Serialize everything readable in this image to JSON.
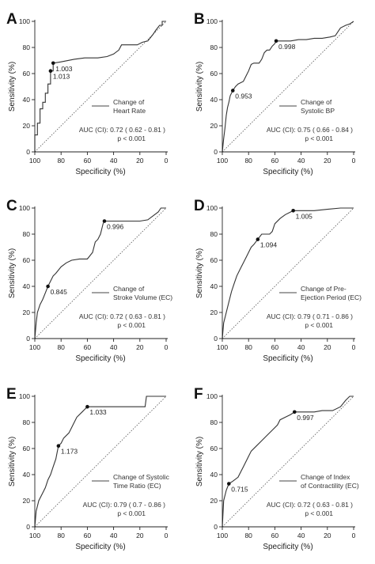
{
  "chart_data": [
    {
      "panel": "A",
      "type": "line",
      "xlabel": "Specificity (%)",
      "ylabel": "Sensitivity (%)",
      "xlim": [
        100,
        0
      ],
      "ylim": [
        0,
        100
      ],
      "xticks": [
        "100",
        "80",
        "60",
        "40",
        "20",
        "0"
      ],
      "yticks": [
        "0",
        "20",
        "40",
        "60",
        "80",
        "100"
      ],
      "legend": [
        "Change of",
        "Heart Rate"
      ],
      "auc": "AUC (CI): 0.72 ( 0.62 - 0.81 )",
      "p": "p < 0.001",
      "points": [
        {
          "x": 86,
          "y": 68,
          "label": "1.003"
        },
        {
          "x": 88,
          "y": 62,
          "label": "1.013"
        }
      ],
      "roc": [
        [
          100,
          0
        ],
        [
          100,
          13
        ],
        [
          98,
          13
        ],
        [
          98,
          22
        ],
        [
          96,
          22
        ],
        [
          96,
          33
        ],
        [
          94,
          33
        ],
        [
          94,
          38
        ],
        [
          92,
          38
        ],
        [
          92,
          45
        ],
        [
          90,
          45
        ],
        [
          90,
          52
        ],
        [
          88,
          52
        ],
        [
          88,
          62
        ],
        [
          86,
          62
        ],
        [
          86,
          68
        ],
        [
          80,
          69
        ],
        [
          70,
          71
        ],
        [
          62,
          72
        ],
        [
          52,
          72
        ],
        [
          45,
          73
        ],
        [
          40,
          75
        ],
        [
          36,
          78
        ],
        [
          34,
          82
        ],
        [
          28,
          82
        ],
        [
          22,
          82
        ],
        [
          18,
          84
        ],
        [
          14,
          85
        ],
        [
          10,
          90
        ],
        [
          8,
          93
        ],
        [
          5,
          97
        ],
        [
          3,
          97
        ],
        [
          3,
          100
        ],
        [
          0,
          100
        ]
      ]
    },
    {
      "panel": "B",
      "type": "line",
      "xlabel": "Specificity (%)",
      "ylabel": "Sensitivity (%)",
      "xlim": [
        100,
        0
      ],
      "ylim": [
        0,
        100
      ],
      "xticks": [
        "100",
        "80",
        "60",
        "40",
        "20",
        "0"
      ],
      "yticks": [
        "0",
        "20",
        "40",
        "60",
        "80",
        "100"
      ],
      "legend": [
        "Change of",
        "Systolic BP"
      ],
      "auc": "AUC (CI): 0.75 ( 0.66 - 0.84 )",
      "p": "p < 0.001",
      "points": [
        {
          "x": 59,
          "y": 85,
          "label": "0.998"
        },
        {
          "x": 92,
          "y": 47,
          "label": "0.953"
        }
      ],
      "roc": [
        [
          100,
          0
        ],
        [
          99,
          10
        ],
        [
          98,
          18
        ],
        [
          97,
          28
        ],
        [
          96,
          34
        ],
        [
          95,
          38
        ],
        [
          94,
          43
        ],
        [
          93,
          45
        ],
        [
          92,
          47
        ],
        [
          90,
          50
        ],
        [
          88,
          52
        ],
        [
          84,
          54
        ],
        [
          82,
          58
        ],
        [
          80,
          62
        ],
        [
          78,
          67
        ],
        [
          76,
          68
        ],
        [
          72,
          68
        ],
        [
          70,
          71
        ],
        [
          68,
          76
        ],
        [
          66,
          78
        ],
        [
          64,
          78
        ],
        [
          62,
          81
        ],
        [
          60,
          83
        ],
        [
          59,
          85
        ],
        [
          54,
          85
        ],
        [
          48,
          85
        ],
        [
          42,
          86
        ],
        [
          36,
          86
        ],
        [
          30,
          87
        ],
        [
          24,
          87
        ],
        [
          18,
          88
        ],
        [
          14,
          89
        ],
        [
          12,
          92
        ],
        [
          10,
          95
        ],
        [
          6,
          97
        ],
        [
          3,
          98
        ],
        [
          0,
          100
        ]
      ]
    },
    {
      "panel": "C",
      "type": "line",
      "xlabel": "Specificity (%)",
      "ylabel": "Sensitivity (%)",
      "xlim": [
        100,
        0
      ],
      "ylim": [
        0,
        100
      ],
      "xticks": [
        "100",
        "80",
        "60",
        "40",
        "20",
        "0"
      ],
      "yticks": [
        "0",
        "20",
        "40",
        "60",
        "80",
        "100"
      ],
      "legend": [
        "Change of",
        "Stroke Volume (EC)"
      ],
      "auc": "AUC (CI): 0.72 ( 0.63 - 0.81 )",
      "p": "p < 0.001",
      "points": [
        {
          "x": 47,
          "y": 90,
          "label": "0.996"
        },
        {
          "x": 90,
          "y": 40,
          "label": "0.845"
        }
      ],
      "roc": [
        [
          100,
          0
        ],
        [
          99,
          12
        ],
        [
          98,
          20
        ],
        [
          96,
          26
        ],
        [
          94,
          30
        ],
        [
          92,
          35
        ],
        [
          90,
          40
        ],
        [
          88,
          44
        ],
        [
          86,
          48
        ],
        [
          84,
          50
        ],
        [
          80,
          55
        ],
        [
          76,
          58
        ],
        [
          72,
          60
        ],
        [
          66,
          61
        ],
        [
          60,
          61
        ],
        [
          56,
          66
        ],
        [
          54,
          74
        ],
        [
          52,
          76
        ],
        [
          50,
          80
        ],
        [
          48,
          88
        ],
        [
          47,
          90
        ],
        [
          40,
          90
        ],
        [
          30,
          90
        ],
        [
          20,
          90
        ],
        [
          14,
          91
        ],
        [
          10,
          94
        ],
        [
          6,
          97
        ],
        [
          4,
          100
        ],
        [
          0,
          100
        ]
      ]
    },
    {
      "panel": "D",
      "type": "line",
      "xlabel": "Specificity (%)",
      "ylabel": "Sensitivity (%)",
      "xlim": [
        100,
        0
      ],
      "ylim": [
        0,
        100
      ],
      "xticks": [
        "100",
        "80",
        "60",
        "40",
        "20",
        "0"
      ],
      "yticks": [
        "0",
        "20",
        "40",
        "60",
        "80",
        "100"
      ],
      "legend": [
        "Change of Pre-",
        "Ejection Period (EC)"
      ],
      "auc": "AUC (CI): 0.79 ( 0.71 - 0.86 )",
      "p": "p < 0.001",
      "points": [
        {
          "x": 46,
          "y": 98,
          "label": "1.005"
        },
        {
          "x": 73,
          "y": 76,
          "label": "1.094"
        }
      ],
      "roc": [
        [
          100,
          0
        ],
        [
          99,
          12
        ],
        [
          97,
          20
        ],
        [
          95,
          28
        ],
        [
          93,
          36
        ],
        [
          91,
          42
        ],
        [
          89,
          48
        ],
        [
          86,
          54
        ],
        [
          84,
          58
        ],
        [
          82,
          62
        ],
        [
          80,
          66
        ],
        [
          78,
          70
        ],
        [
          76,
          72
        ],
        [
          73,
          76
        ],
        [
          70,
          80
        ],
        [
          64,
          80
        ],
        [
          62,
          82
        ],
        [
          60,
          88
        ],
        [
          56,
          92
        ],
        [
          52,
          95
        ],
        [
          48,
          97
        ],
        [
          46,
          98
        ],
        [
          38,
          98
        ],
        [
          30,
          98
        ],
        [
          20,
          99
        ],
        [
          10,
          100
        ],
        [
          0,
          100
        ]
      ]
    },
    {
      "panel": "E",
      "type": "line",
      "xlabel": "Specificity (%)",
      "ylabel": "Sensitivity (%)",
      "xlim": [
        100,
        0
      ],
      "ylim": [
        0,
        100
      ],
      "xticks": [
        "100",
        "80",
        "60",
        "40",
        "20",
        "0"
      ],
      "yticks": [
        "0",
        "20",
        "40",
        "60",
        "80",
        "100"
      ],
      "legend": [
        "Change of Systolic",
        "Time Ratio (EC)"
      ],
      "auc": "AUC (CI): 0.79 ( 0.7 - 0.86 )",
      "p": "p < 0.001",
      "points": [
        {
          "x": 60,
          "y": 92,
          "label": "1.033"
        },
        {
          "x": 82,
          "y": 62,
          "label": "1.173"
        }
      ],
      "roc": [
        [
          100,
          0
        ],
        [
          99,
          12
        ],
        [
          97,
          20
        ],
        [
          94,
          26
        ],
        [
          92,
          30
        ],
        [
          90,
          36
        ],
        [
          88,
          40
        ],
        [
          86,
          46
        ],
        [
          84,
          52
        ],
        [
          83,
          57
        ],
        [
          82,
          62
        ],
        [
          80,
          64
        ],
        [
          78,
          68
        ],
        [
          74,
          72
        ],
        [
          72,
          76
        ],
        [
          70,
          80
        ],
        [
          68,
          84
        ],
        [
          64,
          88
        ],
        [
          62,
          90
        ],
        [
          60,
          92
        ],
        [
          50,
          92
        ],
        [
          40,
          92
        ],
        [
          30,
          92
        ],
        [
          20,
          92
        ],
        [
          16,
          92
        ],
        [
          15,
          100
        ],
        [
          0,
          100
        ]
      ]
    },
    {
      "panel": "F",
      "type": "line",
      "xlabel": "Specificity (%)",
      "ylabel": "Sensitivity (%)",
      "xlim": [
        100,
        0
      ],
      "ylim": [
        0,
        100
      ],
      "xticks": [
        "100",
        "80",
        "60",
        "40",
        "20",
        "0"
      ],
      "yticks": [
        "0",
        "20",
        "40",
        "60",
        "80",
        "100"
      ],
      "legend": [
        "Change of Index",
        "of Contractility (EC)"
      ],
      "auc": "AUC (CI): 0.72 ( 0.63 - 0.81 )",
      "p": "p < 0.001",
      "points": [
        {
          "x": 45,
          "y": 88,
          "label": "0.997"
        },
        {
          "x": 95,
          "y": 33,
          "label": "0.715"
        }
      ],
      "roc": [
        [
          100,
          0
        ],
        [
          99,
          20
        ],
        [
          97,
          28
        ],
        [
          95,
          33
        ],
        [
          92,
          35
        ],
        [
          88,
          38
        ],
        [
          86,
          42
        ],
        [
          84,
          46
        ],
        [
          82,
          50
        ],
        [
          80,
          54
        ],
        [
          78,
          58
        ],
        [
          74,
          62
        ],
        [
          70,
          66
        ],
        [
          66,
          70
        ],
        [
          62,
          74
        ],
        [
          58,
          78
        ],
        [
          56,
          82
        ],
        [
          52,
          84
        ],
        [
          48,
          86
        ],
        [
          45,
          88
        ],
        [
          40,
          88
        ],
        [
          30,
          88
        ],
        [
          24,
          89
        ],
        [
          16,
          89
        ],
        [
          10,
          92
        ],
        [
          6,
          97
        ],
        [
          3,
          100
        ],
        [
          0,
          100
        ]
      ]
    }
  ]
}
